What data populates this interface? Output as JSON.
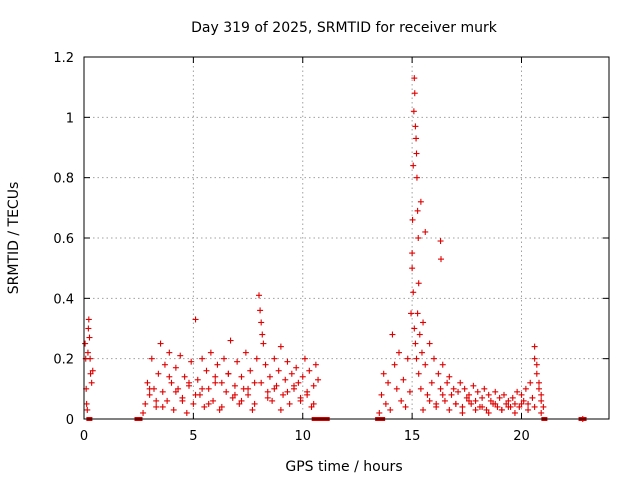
{
  "chart_data": {
    "type": "scatter",
    "title": "Day 319 of 2025, SRMTID for receiver murk",
    "xlabel": "GPS time / hours",
    "ylabel": "SRMTID / TECUs",
    "xlim": [
      0,
      24
    ],
    "ylim": [
      0,
      1.2
    ],
    "grid": true,
    "xticks": [
      0,
      5,
      10,
      15,
      20
    ],
    "xtick_labels": [
      "0",
      "5",
      "10",
      "15",
      "20"
    ],
    "yticks": [
      0,
      0.2,
      0.4,
      0.6,
      0.8,
      1.0,
      1.2
    ],
    "ytick_labels": [
      "0",
      "0.2",
      "0.4",
      "0.6",
      "0.8",
      "1",
      "1.2"
    ],
    "series": [
      {
        "name": "SRMTID",
        "color": "#e00000",
        "marker": "plus",
        "x": [
          0.05,
          0.08,
          0.1,
          0.12,
          0.15,
          0.18,
          0.2,
          0.22,
          0.25,
          0.28,
          0.3,
          0.35,
          0.4,
          2.7,
          2.8,
          2.9,
          3.0,
          3.1,
          3.2,
          3.3,
          3.4,
          3.5,
          3.6,
          3.7,
          3.8,
          3.9,
          4.0,
          4.1,
          4.2,
          4.3,
          4.4,
          4.5,
          4.6,
          4.7,
          4.8,
          4.9,
          5.0,
          5.1,
          5.2,
          5.3,
          5.4,
          5.5,
          5.6,
          5.7,
          5.8,
          5.9,
          6.0,
          6.1,
          6.2,
          6.3,
          6.4,
          6.5,
          6.6,
          6.7,
          6.8,
          6.9,
          7.0,
          7.1,
          7.2,
          7.3,
          7.4,
          7.5,
          7.6,
          7.7,
          7.8,
          7.9,
          8.0,
          8.05,
          8.1,
          8.15,
          8.2,
          8.3,
          8.4,
          8.5,
          8.6,
          8.7,
          8.8,
          8.9,
          9.0,
          9.1,
          9.2,
          9.3,
          9.4,
          9.5,
          9.6,
          9.7,
          9.8,
          9.9,
          10.0,
          10.1,
          10.2,
          10.3,
          10.4,
          10.5,
          10.6,
          10.7,
          3.0,
          3.3,
          3.6,
          3.9,
          4.2,
          4.5,
          4.8,
          5.1,
          5.4,
          5.7,
          6.0,
          6.3,
          6.6,
          6.9,
          7.2,
          7.5,
          7.8,
          8.1,
          8.4,
          8.7,
          9.0,
          9.3,
          9.6,
          9.9,
          10.2,
          10.5,
          13.5,
          13.6,
          13.7,
          13.8,
          13.9,
          14.0,
          14.1,
          14.2,
          14.3,
          14.4,
          14.5,
          14.6,
          14.7,
          14.8,
          14.9,
          14.95,
          15.0,
          15.02,
          15.05,
          15.08,
          15.1,
          15.12,
          15.15,
          15.18,
          15.2,
          15.22,
          15.25,
          15.28,
          15.3,
          15.0,
          15.05,
          15.1,
          15.15,
          15.2,
          15.25,
          15.3,
          15.35,
          15.4,
          15.45,
          15.5,
          15.6,
          15.7,
          15.8,
          15.9,
          16.0,
          16.1,
          16.2,
          16.3,
          16.4,
          16.5,
          16.6,
          16.7,
          16.8,
          16.9,
          17.0,
          17.1,
          17.2,
          17.3,
          17.4,
          17.5,
          17.6,
          17.7,
          17.8,
          17.9,
          18.0,
          18.1,
          18.2,
          18.3,
          18.4,
          18.5,
          18.6,
          18.7,
          18.8,
          18.9,
          19.0,
          19.1,
          19.2,
          19.3,
          19.4,
          19.5,
          19.6,
          19.7,
          19.8,
          19.9,
          20.0,
          20.1,
          20.2,
          20.3,
          20.4,
          20.5,
          20.6,
          20.7,
          20.8,
          20.9,
          21.0,
          15.5,
          15.8,
          16.1,
          16.4,
          16.7,
          17.0,
          17.3,
          17.6,
          17.9,
          18.2,
          18.5,
          18.8,
          19.1,
          19.4,
          19.7,
          20.0,
          20.3,
          20.6,
          20.9,
          16.3,
          16.32,
          15.4,
          15.6,
          20.6,
          20.7,
          20.8,
          20.9,
          22.8
        ],
        "y": [
          0.25,
          0.2,
          0.1,
          0.05,
          0.03,
          0.22,
          0.3,
          0.33,
          0.27,
          0.2,
          0.15,
          0.12,
          0.16,
          0.02,
          0.05,
          0.12,
          0.08,
          0.2,
          0.1,
          0.04,
          0.15,
          0.25,
          0.09,
          0.18,
          0.06,
          0.22,
          0.12,
          0.03,
          0.17,
          0.1,
          0.21,
          0.07,
          0.14,
          0.02,
          0.11,
          0.19,
          0.05,
          0.33,
          0.13,
          0.08,
          0.2,
          0.04,
          0.16,
          0.1,
          0.22,
          0.06,
          0.14,
          0.18,
          0.03,
          0.12,
          0.2,
          0.09,
          0.15,
          0.26,
          0.07,
          0.11,
          0.19,
          0.05,
          0.14,
          0.1,
          0.22,
          0.08,
          0.16,
          0.03,
          0.12,
          0.2,
          0.41,
          0.36,
          0.32,
          0.28,
          0.25,
          0.18,
          0.09,
          0.14,
          0.06,
          0.2,
          0.11,
          0.16,
          0.24,
          0.08,
          0.13,
          0.19,
          0.05,
          0.15,
          0.1,
          0.17,
          0.12,
          0.07,
          0.14,
          0.2,
          0.09,
          0.16,
          0.04,
          0.11,
          0.18,
          0.13,
          0.1,
          0.06,
          0.04,
          0.14,
          0.09,
          0.06,
          0.12,
          0.08,
          0.1,
          0.05,
          0.12,
          0.04,
          0.15,
          0.08,
          0.06,
          0.1,
          0.05,
          0.12,
          0.07,
          0.1,
          0.03,
          0.09,
          0.11,
          0.06,
          0.08,
          0.05,
          0.02,
          0.08,
          0.15,
          0.05,
          0.12,
          0.03,
          0.28,
          0.18,
          0.1,
          0.22,
          0.06,
          0.13,
          0.04,
          0.2,
          0.09,
          0.35,
          0.5,
          0.66,
          0.84,
          1.02,
          1.13,
          1.08,
          0.97,
          0.93,
          0.88,
          0.8,
          0.69,
          0.6,
          0.45,
          0.55,
          0.42,
          0.3,
          0.25,
          0.2,
          0.35,
          0.15,
          0.28,
          0.1,
          0.22,
          0.32,
          0.18,
          0.08,
          0.25,
          0.12,
          0.2,
          0.05,
          0.15,
          0.1,
          0.18,
          0.06,
          0.12,
          0.14,
          0.08,
          0.1,
          0.05,
          0.09,
          0.12,
          0.04,
          0.1,
          0.07,
          0.08,
          0.05,
          0.11,
          0.06,
          0.09,
          0.04,
          0.07,
          0.1,
          0.03,
          0.08,
          0.06,
          0.05,
          0.09,
          0.04,
          0.07,
          0.03,
          0.08,
          0.05,
          0.06,
          0.04,
          0.07,
          0.05,
          0.09,
          0.04,
          0.08,
          0.06,
          0.1,
          0.05,
          0.12,
          0.07,
          0.2,
          0.15,
          0.1,
          0.06,
          0.04,
          0.03,
          0.06,
          0.04,
          0.08,
          0.03,
          0.05,
          0.02,
          0.06,
          0.03,
          0.04,
          0.02,
          0.05,
          0.03,
          0.04,
          0.02,
          0.05,
          0.03,
          0.04,
          0.02,
          0.59,
          0.53,
          0.72,
          0.62,
          0.24,
          0.18,
          0.12,
          0.08,
          0.0
        ],
        "zero_segments_hours": [
          [
            0.2,
            0.35
          ],
          [
            2.4,
            2.6
          ],
          [
            10.5,
            11.2
          ],
          [
            13.4,
            13.7
          ],
          [
            21.0,
            21.1
          ],
          [
            22.7,
            22.9
          ]
        ]
      }
    ]
  }
}
